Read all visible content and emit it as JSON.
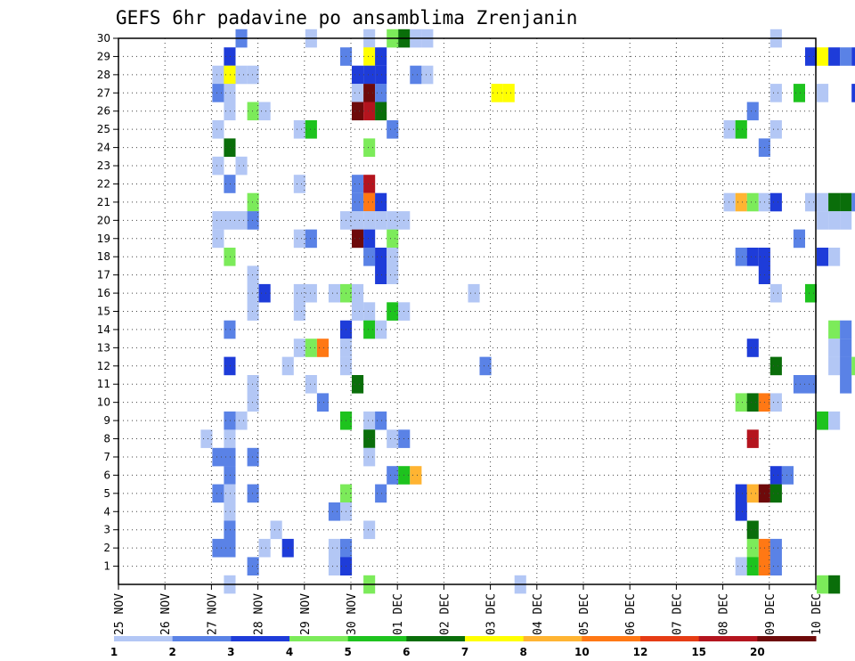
{
  "chart_data": {
    "type": "heatmap",
    "title": "GEFS 6hr padavine po ansamblima Zrenjanin",
    "y_ticks": [
      "1",
      "2",
      "3",
      "4",
      "5",
      "6",
      "7",
      "8",
      "9",
      "10",
      "11",
      "12",
      "13",
      "14",
      "15",
      "16",
      "17",
      "18",
      "19",
      "20",
      "21",
      "22",
      "23",
      "24",
      "25",
      "26",
      "27",
      "28",
      "29",
      "30"
    ],
    "x_ticks": [
      "25 NOV",
      "26 NOV",
      "27 NOV",
      "28 NOV",
      "29 NOV",
      "30 NOV",
      "01 DEC",
      "02 DEC",
      "03 DEC",
      "04 DEC",
      "05 DEC",
      "06 DEC",
      "07 DEC",
      "08 DEC",
      "09 DEC",
      "10 DEC"
    ],
    "x_range": [
      "25 NOV",
      "10 DEC"
    ],
    "y_range": [
      0,
      30
    ],
    "grid": true,
    "colorbar": {
      "labels": [
        "1",
        "2",
        "3",
        "4",
        "5",
        "6",
        "7",
        "8",
        "10",
        "12",
        "15",
        "20"
      ],
      "colors": [
        "#b3c7f5",
        "#5a82e6",
        "#1e3cd9",
        "#7ceb5a",
        "#1ec31e",
        "#0a6e0a",
        "#ffff00",
        "#ffb432",
        "#ff7814",
        "#e63c14",
        "#b4141e",
        "#6e0a0a"
      ]
    },
    "cells": [
      [
        30,
        45,
        1
      ],
      [
        30,
        68,
        2
      ],
      [
        30,
        74,
        1
      ],
      [
        30,
        79,
        1
      ],
      [
        30,
        81,
        4
      ],
      [
        30,
        82,
        6
      ],
      [
        30,
        83,
        1
      ],
      [
        30,
        84,
        1
      ],
      [
        30,
        114,
        1
      ],
      [
        30,
        123,
        8
      ],
      [
        30,
        124,
        5
      ],
      [
        30,
        154,
        4
      ],
      [
        30,
        155,
        1
      ],
      [
        29,
        67,
        3
      ],
      [
        29,
        77,
        2
      ],
      [
        29,
        79,
        7
      ],
      [
        29,
        80,
        3
      ],
      [
        29,
        117,
        3
      ],
      [
        29,
        118,
        7
      ],
      [
        29,
        119,
        3
      ],
      [
        29,
        120,
        2
      ],
      [
        29,
        121,
        3
      ],
      [
        29,
        122,
        1
      ],
      [
        29,
        124,
        1
      ],
      [
        29,
        146,
        2
      ],
      [
        28,
        66,
        1
      ],
      [
        28,
        67,
        7
      ],
      [
        28,
        68,
        1
      ],
      [
        28,
        69,
        1
      ],
      [
        28,
        78,
        3
      ],
      [
        28,
        79,
        3
      ],
      [
        28,
        80,
        3
      ],
      [
        28,
        83,
        2
      ],
      [
        28,
        84,
        1
      ],
      [
        28,
        136,
        4
      ],
      [
        28,
        144,
        2
      ],
      [
        28,
        145,
        3
      ],
      [
        28,
        146,
        1
      ],
      [
        28,
        153,
        1
      ],
      [
        28,
        154,
        1
      ],
      [
        28,
        155,
        3
      ],
      [
        27,
        66,
        2
      ],
      [
        27,
        67,
        1
      ],
      [
        27,
        78,
        1
      ],
      [
        27,
        79,
        12
      ],
      [
        27,
        80,
        2
      ],
      [
        27,
        90,
        7
      ],
      [
        27,
        91,
        7
      ],
      [
        27,
        114,
        1
      ],
      [
        27,
        116,
        5
      ],
      [
        27,
        118,
        1
      ],
      [
        27,
        121,
        3
      ],
      [
        27,
        122,
        7
      ],
      [
        27,
        123,
        3
      ],
      [
        27,
        124,
        1
      ],
      [
        26,
        67,
        1
      ],
      [
        26,
        69,
        4
      ],
      [
        26,
        70,
        1
      ],
      [
        26,
        78,
        12
      ],
      [
        26,
        79,
        11
      ],
      [
        26,
        80,
        6
      ],
      [
        26,
        112,
        2
      ],
      [
        26,
        142,
        1
      ],
      [
        25,
        66,
        1
      ],
      [
        25,
        73,
        1
      ],
      [
        25,
        74,
        5
      ],
      [
        25,
        81,
        2
      ],
      [
        25,
        110,
        1
      ],
      [
        25,
        111,
        5
      ],
      [
        25,
        114,
        1
      ],
      [
        25,
        143,
        1
      ],
      [
        25,
        144,
        2
      ],
      [
        25,
        145,
        1
      ],
      [
        25,
        146,
        1
      ],
      [
        25,
        156,
        5
      ],
      [
        24,
        67,
        6
      ],
      [
        24,
        79,
        4
      ],
      [
        24,
        113,
        2
      ],
      [
        24,
        155,
        6
      ],
      [
        24,
        156,
        3
      ],
      [
        23,
        66,
        1
      ],
      [
        23,
        68,
        1
      ],
      [
        22,
        67,
        2
      ],
      [
        22,
        73,
        1
      ],
      [
        22,
        78,
        2
      ],
      [
        22,
        79,
        11
      ],
      [
        22,
        151,
        1
      ],
      [
        22,
        155,
        1
      ],
      [
        21,
        69,
        4
      ],
      [
        21,
        78,
        2
      ],
      [
        21,
        79,
        9
      ],
      [
        21,
        80,
        3
      ],
      [
        21,
        110,
        1
      ],
      [
        21,
        111,
        8
      ],
      [
        21,
        112,
        4
      ],
      [
        21,
        113,
        1
      ],
      [
        21,
        114,
        3
      ],
      [
        21,
        117,
        1
      ],
      [
        21,
        118,
        1
      ],
      [
        21,
        119,
        6
      ],
      [
        21,
        120,
        6
      ],
      [
        21,
        121,
        2
      ],
      [
        21,
        143,
        2
      ],
      [
        21,
        144,
        6
      ],
      [
        21,
        146,
        1
      ],
      [
        20,
        66,
        1
      ],
      [
        20,
        67,
        1
      ],
      [
        20,
        68,
        1
      ],
      [
        20,
        69,
        2
      ],
      [
        20,
        77,
        1
      ],
      [
        20,
        78,
        1
      ],
      [
        20,
        79,
        1
      ],
      [
        20,
        80,
        1
      ],
      [
        20,
        81,
        1
      ],
      [
        20,
        82,
        1
      ],
      [
        20,
        118,
        1
      ],
      [
        20,
        119,
        1
      ],
      [
        20,
        120,
        1
      ],
      [
        20,
        144,
        1
      ],
      [
        20,
        145,
        3
      ],
      [
        19,
        66,
        1
      ],
      [
        19,
        73,
        1
      ],
      [
        19,
        74,
        2
      ],
      [
        19,
        78,
        12
      ],
      [
        19,
        79,
        3
      ],
      [
        19,
        81,
        4
      ],
      [
        19,
        116,
        2
      ],
      [
        18,
        67,
        4
      ],
      [
        18,
        79,
        2
      ],
      [
        18,
        80,
        3
      ],
      [
        18,
        81,
        1
      ],
      [
        18,
        111,
        2
      ],
      [
        18,
        112,
        3
      ],
      [
        18,
        113,
        3
      ],
      [
        18,
        118,
        3
      ],
      [
        18,
        119,
        1
      ],
      [
        18,
        154,
        1
      ],
      [
        17,
        69,
        1
      ],
      [
        17,
        80,
        3
      ],
      [
        17,
        81,
        1
      ],
      [
        17,
        113,
        3
      ],
      [
        16,
        69,
        1
      ],
      [
        16,
        70,
        3
      ],
      [
        16,
        73,
        1
      ],
      [
        16,
        74,
        1
      ],
      [
        16,
        76,
        1
      ],
      [
        16,
        77,
        4
      ],
      [
        16,
        78,
        1
      ],
      [
        16,
        88,
        1
      ],
      [
        16,
        114,
        1
      ],
      [
        16,
        117,
        5
      ],
      [
        16,
        133,
        1
      ],
      [
        16,
        134,
        5
      ],
      [
        16,
        136,
        1
      ],
      [
        16,
        137,
        4
      ],
      [
        16,
        140,
        1
      ],
      [
        16,
        141,
        4
      ],
      [
        16,
        145,
        1
      ],
      [
        16,
        147,
        3
      ],
      [
        16,
        148,
        1
      ],
      [
        15,
        69,
        1
      ],
      [
        15,
        73,
        1
      ],
      [
        15,
        78,
        1
      ],
      [
        15,
        79,
        1
      ],
      [
        15,
        81,
        5
      ],
      [
        15,
        82,
        1
      ],
      [
        15,
        136,
        1
      ],
      [
        15,
        138,
        1
      ],
      [
        14,
        67,
        2
      ],
      [
        14,
        77,
        3
      ],
      [
        14,
        79,
        5
      ],
      [
        14,
        80,
        1
      ],
      [
        14,
        119,
        4
      ],
      [
        14,
        120,
        2
      ],
      [
        14,
        145,
        5
      ],
      [
        13,
        73,
        1
      ],
      [
        13,
        74,
        4
      ],
      [
        13,
        75,
        9
      ],
      [
        13,
        77,
        1
      ],
      [
        13,
        112,
        3
      ],
      [
        13,
        119,
        1
      ],
      [
        13,
        120,
        2
      ],
      [
        12,
        67,
        3
      ],
      [
        12,
        72,
        1
      ],
      [
        12,
        77,
        1
      ],
      [
        12,
        89,
        2
      ],
      [
        12,
        114,
        6
      ],
      [
        12,
        119,
        1
      ],
      [
        12,
        120,
        2
      ],
      [
        12,
        121,
        4
      ],
      [
        12,
        122,
        3
      ],
      [
        11,
        69,
        1
      ],
      [
        11,
        74,
        1
      ],
      [
        11,
        78,
        6
      ],
      [
        11,
        116,
        2
      ],
      [
        11,
        117,
        2
      ],
      [
        11,
        120,
        2
      ],
      [
        11,
        123,
        1
      ],
      [
        11,
        124,
        1
      ],
      [
        11,
        125,
        1
      ],
      [
        11,
        127,
        1
      ],
      [
        11,
        128,
        1
      ],
      [
        11,
        129,
        1
      ],
      [
        11,
        130,
        1
      ],
      [
        10,
        69,
        1
      ],
      [
        10,
        75,
        2
      ],
      [
        10,
        111,
        4
      ],
      [
        10,
        112,
        6
      ],
      [
        10,
        113,
        9
      ],
      [
        10,
        114,
        1
      ],
      [
        10,
        148,
        2
      ],
      [
        10,
        149,
        1
      ],
      [
        9,
        67,
        2
      ],
      [
        9,
        68,
        1
      ],
      [
        9,
        77,
        5
      ],
      [
        9,
        79,
        1
      ],
      [
        9,
        80,
        2
      ],
      [
        9,
        118,
        5
      ],
      [
        9,
        119,
        1
      ],
      [
        9,
        141,
        1
      ],
      [
        9,
        142,
        4
      ],
      [
        8,
        65,
        1
      ],
      [
        8,
        67,
        1
      ],
      [
        8,
        79,
        6
      ],
      [
        8,
        81,
        1
      ],
      [
        8,
        82,
        2
      ],
      [
        8,
        112,
        11
      ],
      [
        8,
        130,
        3
      ],
      [
        8,
        131,
        1
      ],
      [
        8,
        132,
        2
      ],
      [
        7,
        66,
        2
      ],
      [
        7,
        67,
        2
      ],
      [
        7,
        69,
        2
      ],
      [
        7,
        79,
        1
      ],
      [
        7,
        146,
        5
      ],
      [
        7,
        147,
        5
      ],
      [
        6,
        67,
        2
      ],
      [
        6,
        81,
        2
      ],
      [
        6,
        82,
        5
      ],
      [
        6,
        83,
        8
      ],
      [
        6,
        114,
        3
      ],
      [
        6,
        115,
        2
      ],
      [
        6,
        132,
        2
      ],
      [
        6,
        134,
        5
      ],
      [
        6,
        152,
        2
      ],
      [
        6,
        153,
        5
      ],
      [
        5,
        66,
        2
      ],
      [
        5,
        67,
        1
      ],
      [
        5,
        69,
        2
      ],
      [
        5,
        77,
        4
      ],
      [
        5,
        80,
        2
      ],
      [
        5,
        111,
        3
      ],
      [
        5,
        112,
        8
      ],
      [
        5,
        113,
        12
      ],
      [
        5,
        114,
        6
      ],
      [
        4,
        67,
        1
      ],
      [
        4,
        76,
        2
      ],
      [
        4,
        77,
        1
      ],
      [
        4,
        111,
        3
      ],
      [
        4,
        151,
        1
      ],
      [
        4,
        152,
        5
      ],
      [
        4,
        155,
        1
      ],
      [
        4,
        156,
        1
      ],
      [
        3,
        67,
        2
      ],
      [
        3,
        71,
        1
      ],
      [
        3,
        79,
        1
      ],
      [
        3,
        112,
        6
      ],
      [
        2,
        66,
        2
      ],
      [
        2,
        67,
        2
      ],
      [
        2,
        70,
        1
      ],
      [
        2,
        72,
        3
      ],
      [
        2,
        76,
        1
      ],
      [
        2,
        77,
        2
      ],
      [
        2,
        112,
        4
      ],
      [
        2,
        113,
        9
      ],
      [
        2,
        114,
        2
      ],
      [
        1,
        69,
        2
      ],
      [
        1,
        76,
        1
      ],
      [
        1,
        77,
        3
      ],
      [
        1,
        111,
        1
      ],
      [
        1,
        112,
        5
      ],
      [
        1,
        113,
        9
      ],
      [
        1,
        114,
        2
      ],
      [
        0,
        67,
        1
      ],
      [
        0,
        79,
        4
      ],
      [
        0,
        92,
        1
      ],
      [
        0,
        118,
        4
      ],
      [
        0,
        119,
        6
      ],
      [
        0,
        145,
        1
      ],
      [
        0,
        155,
        1
      ]
    ]
  }
}
